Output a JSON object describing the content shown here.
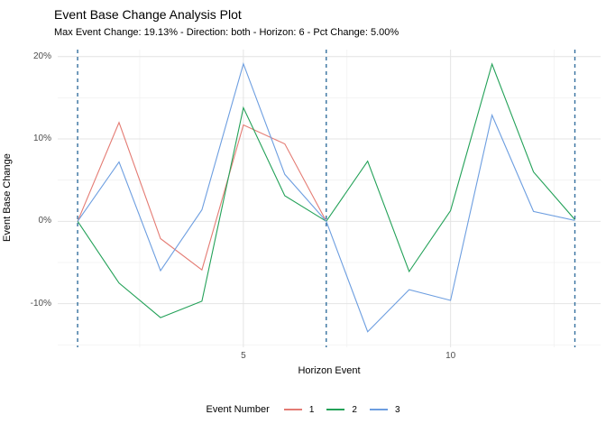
{
  "chart_data": {
    "type": "line",
    "title": "Event Base Change Analysis Plot",
    "subtitle": "Max Event Change: 19.13% - Direction: both - Horizon: 6 - Pct Change: 5.00%",
    "xlabel": "Horizon Event",
    "ylabel": "Event Base Change",
    "x": [
      1,
      2,
      3,
      4,
      5,
      6,
      7,
      8,
      9,
      10,
      11,
      12,
      13
    ],
    "series": [
      {
        "name": "1",
        "color": "#E47B73",
        "values": [
          0,
          12.0,
          -2.1,
          -5.9,
          11.7,
          9.4,
          0,
          null,
          null,
          null,
          null,
          null,
          null
        ]
      },
      {
        "name": "2",
        "color": "#23A158",
        "values": [
          0,
          -7.5,
          -11.7,
          -9.7,
          13.8,
          3.1,
          0,
          7.3,
          -6.1,
          1.3,
          19.1,
          6.0,
          0.2
        ]
      },
      {
        "name": "3",
        "color": "#6D9EE0",
        "values": [
          0,
          7.2,
          -6.0,
          1.4,
          19.13,
          5.7,
          0,
          -13.4,
          -8.3,
          -9.6,
          12.9,
          1.2,
          0.1
        ]
      }
    ],
    "event_boundaries": [
      1,
      7,
      13
    ],
    "y_ticks": [
      {
        "value": 20,
        "label": "20%"
      },
      {
        "value": 10,
        "label": "10%"
      },
      {
        "value": 0,
        "label": "0%"
      },
      {
        "value": -10,
        "label": "-10%"
      }
    ],
    "y_minor_ticks": [
      15,
      5,
      -5,
      -15
    ],
    "x_ticks": [
      {
        "value": 5,
        "label": "5"
      },
      {
        "value": 10,
        "label": "10"
      }
    ],
    "x_minor_ticks": [
      2.5,
      7.5,
      12.5
    ],
    "xlim": [
      0.52,
      13.62
    ],
    "ylim": [
      -15.3,
      20.85
    ],
    "grid": "on",
    "legend": {
      "title": "Event Number",
      "position": "bottom"
    },
    "colors": {
      "vline": "#35709E",
      "grid_major": "#E4E4E4",
      "grid_minor": "#F1F1F1",
      "tick_label": "#4d4d4d"
    }
  }
}
